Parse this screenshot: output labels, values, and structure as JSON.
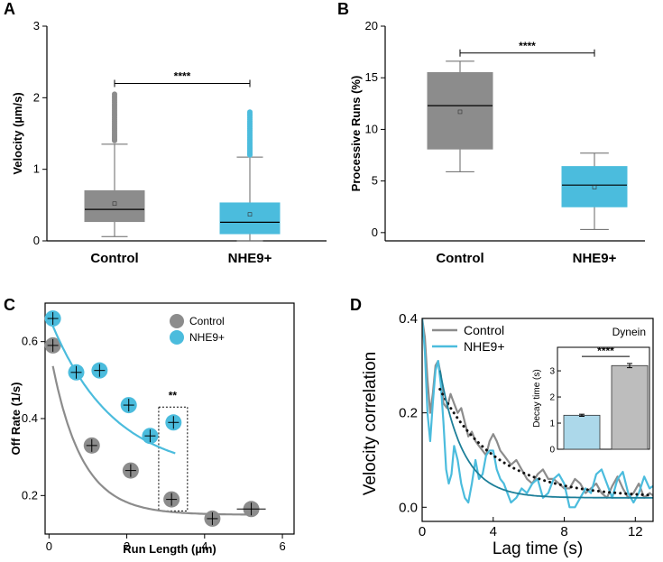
{
  "panels": {
    "A": "A",
    "B": "B",
    "C": "C",
    "D": "D"
  },
  "chart_data": [
    {
      "panel": "A",
      "type": "box",
      "ylabel": "Velocity (µm/s)",
      "ylim": [
        0,
        3
      ],
      "yticks": [
        0,
        1,
        2,
        3
      ],
      "categories": [
        "Control",
        "NHE9+"
      ],
      "colors": [
        "#8c8c8c",
        "#4bbcdd"
      ],
      "boxes": [
        {
          "min": 0.06,
          "q1": 0.27,
          "median": 0.44,
          "mean": 0.52,
          "q3": 0.7,
          "max": 1.35,
          "outliers_from": 1.4,
          "outliers_to": 2.05
        },
        {
          "min": 0.0,
          "q1": 0.1,
          "median": 0.26,
          "mean": 0.37,
          "q3": 0.53,
          "max": 1.17,
          "outliers_from": 1.2,
          "outliers_to": 1.8
        }
      ],
      "significance": {
        "label": "****",
        "y": 2.2
      }
    },
    {
      "panel": "B",
      "type": "box",
      "ylabel": "Processive Runs (%)",
      "ylim": [
        -0.8,
        20
      ],
      "yticks": [
        0,
        5,
        10,
        15,
        20
      ],
      "categories": [
        "Control",
        "NHE9+"
      ],
      "colors": [
        "#8c8c8c",
        "#4bbcdd"
      ],
      "boxes": [
        {
          "min": 5.9,
          "q1": 8.1,
          "median": 12.3,
          "mean": 11.7,
          "q3": 15.5,
          "max": 16.6
        },
        {
          "min": 0.3,
          "q1": 2.5,
          "median": 4.6,
          "mean": 4.4,
          "q3": 6.4,
          "max": 7.7
        }
      ],
      "significance": {
        "label": "****",
        "y": 17.4
      }
    },
    {
      "panel": "C",
      "type": "scatter",
      "xlabel": "Run Length (µm)",
      "ylabel": "Off Rate (1/s)",
      "xlim": [
        -0.1,
        6.3
      ],
      "ylim": [
        0.1,
        0.7
      ],
      "xticks": [
        0,
        2,
        4,
        6
      ],
      "yticks": [
        0.2,
        0.4,
        0.6
      ],
      "series": [
        {
          "name": "Control",
          "color": "#8c8c8c",
          "points": [
            [
              0.1,
              0.59
            ],
            [
              1.1,
              0.33
            ],
            [
              2.1,
              0.265
            ],
            [
              3.15,
              0.19
            ],
            [
              4.2,
              0.14
            ],
            [
              5.2,
              0.165
            ]
          ],
          "fit": {
            "a": 0.44,
            "k": 1.3,
            "c": 0.15
          }
        },
        {
          "name": "NHE9+",
          "color": "#4bbcdd",
          "points": [
            [
              0.1,
              0.66
            ],
            [
              0.7,
              0.52
            ],
            [
              1.3,
              0.525
            ],
            [
              2.05,
              0.435
            ],
            [
              2.6,
              0.355
            ],
            [
              3.2,
              0.39
            ]
          ],
          "fit": {
            "a": 0.41,
            "k": 0.62,
            "c": 0.255
          }
        }
      ],
      "significance": {
        "label": "**",
        "x": 3.18,
        "y": 0.45
      }
    },
    {
      "panel": "D",
      "type": "line",
      "xlabel": "Lag time (s)",
      "ylabel": "Velocity correlation",
      "xlim": [
        0,
        13
      ],
      "ylim": [
        -0.03,
        0.4
      ],
      "xticks": [
        0,
        4,
        8,
        12
      ],
      "yticks": [
        0.0,
        0.2,
        0.4
      ],
      "annotation": "Dynein",
      "series": [
        {
          "name": "Control",
          "color": "#8c8c8c",
          "x": [
            0,
            0.15,
            0.3,
            0.45,
            0.6,
            0.75,
            0.9,
            1.05,
            1.2,
            1.4,
            1.6,
            1.8,
            2.0,
            2.2,
            2.4,
            2.6,
            2.8,
            3.0,
            3.2,
            3.4,
            3.6,
            3.8,
            4.0,
            4.2,
            4.4,
            4.6,
            4.8,
            5.0,
            5.3,
            5.6,
            5.9,
            6.2,
            6.5,
            6.8,
            7.1,
            7.4,
            7.7,
            8.0,
            8.3,
            8.6,
            8.9,
            9.2,
            9.5,
            9.8,
            10.1,
            10.4,
            10.7,
            11.0,
            11.3,
            11.6,
            11.9,
            12.2,
            12.5,
            12.8,
            13.0
          ],
          "y": [
            0.4,
            0.36,
            0.27,
            0.2,
            0.24,
            0.3,
            0.31,
            0.28,
            0.22,
            0.21,
            0.24,
            0.22,
            0.2,
            0.21,
            0.18,
            0.15,
            0.16,
            0.14,
            0.13,
            0.12,
            0.11,
            0.14,
            0.155,
            0.14,
            0.12,
            0.11,
            0.1,
            0.09,
            0.1,
            0.08,
            0.06,
            0.05,
            0.07,
            0.08,
            0.06,
            0.06,
            0.05,
            0.04,
            0.04,
            0.06,
            0.05,
            0.03,
            0.04,
            0.05,
            0.03,
            0.02,
            0.045,
            0.065,
            0.04,
            0.02,
            0.03,
            0.05,
            0.02,
            0.03,
            0.025
          ]
        },
        {
          "name": "NHE9+",
          "color": "#4bbcdd",
          "x": [
            0,
            0.15,
            0.3,
            0.45,
            0.6,
            0.75,
            0.9,
            1.05,
            1.2,
            1.35,
            1.5,
            1.65,
            1.8,
            2.0,
            2.2,
            2.4,
            2.6,
            2.8,
            3.0,
            3.2,
            3.4,
            3.6,
            3.8,
            4.0,
            4.2,
            4.4,
            4.6,
            4.8,
            5.0,
            5.3,
            5.6,
            5.9,
            6.2,
            6.5,
            6.8,
            7.1,
            7.4,
            7.7,
            8.0,
            8.3,
            8.6,
            8.9,
            9.2,
            9.5,
            9.8,
            10.1,
            10.4,
            10.7,
            11.0,
            11.3,
            11.6,
            11.9,
            12.2,
            12.5,
            12.8,
            13.0
          ],
          "y": [
            0.4,
            0.33,
            0.2,
            0.14,
            0.22,
            0.29,
            0.31,
            0.26,
            0.18,
            0.08,
            0.05,
            0.07,
            0.13,
            0.1,
            0.05,
            0.02,
            0.01,
            0.05,
            0.1,
            0.06,
            0.07,
            0.11,
            0.12,
            0.12,
            0.08,
            0.06,
            0.05,
            0.03,
            0.01,
            0.02,
            0.04,
            0.03,
            0.05,
            0.06,
            0.02,
            0.03,
            0.06,
            0.07,
            0.05,
            0.0,
            0.0,
            0.02,
            0.04,
            0.03,
            0.07,
            0.08,
            0.05,
            0.02,
            0.06,
            0.075,
            0.03,
            0.01,
            0.03,
            0.065,
            0.04,
            0.045
          ]
        }
      ],
      "fits": [
        {
          "name": "Control fit",
          "style": "dotted",
          "color": "#111111",
          "a": 0.23,
          "tau": 3.2,
          "c": 0.02,
          "x0": 1.0
        },
        {
          "name": "NHE9+ fit",
          "style": "solid",
          "color": "#1d7f99",
          "a": 0.27,
          "tau": 1.3,
          "c": 0.02,
          "x0": 1.0
        }
      ],
      "inset": {
        "ylabel": "Decay time (s)",
        "ylim": [
          0,
          3.9
        ],
        "yticks": [
          0,
          1,
          2,
          3
        ],
        "bars": [
          {
            "name": "NHE9+",
            "value": 1.3,
            "error": 0.04,
            "color": "#acd8ea"
          },
          {
            "name": "Control",
            "value": 3.2,
            "error": 0.08,
            "color": "#bdbdbd"
          }
        ],
        "significance": "****"
      }
    }
  ]
}
